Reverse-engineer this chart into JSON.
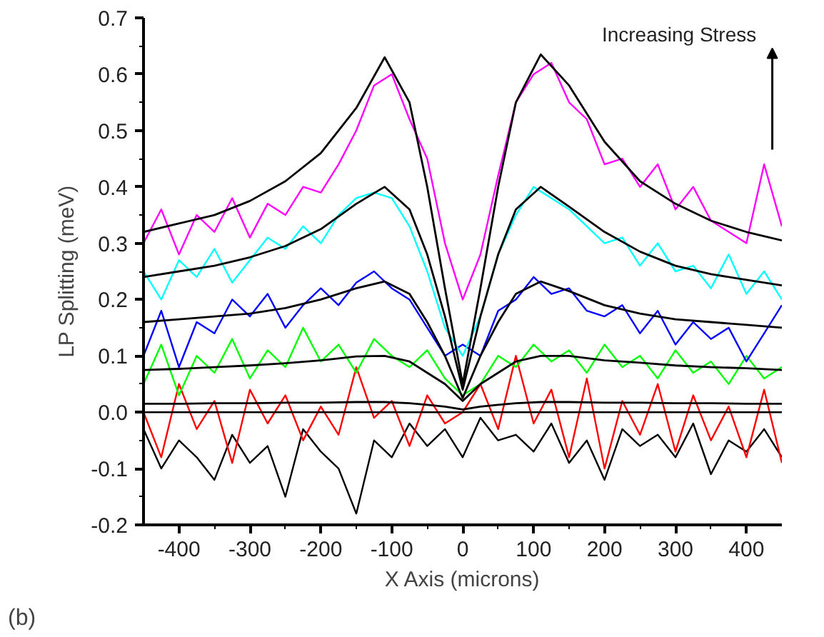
{
  "chart_data": {
    "type": "line",
    "xlabel": "X Axis (microns)",
    "ylabel": "LP Splitting (meV)",
    "annotations": [
      "Increasing Stress",
      "(b)"
    ],
    "x": [
      -450,
      -425,
      -400,
      -375,
      -350,
      -325,
      -300,
      -275,
      -250,
      -225,
      -200,
      -175,
      -150,
      -125,
      -100,
      -75,
      -50,
      -25,
      0,
      25,
      50,
      75,
      100,
      125,
      150,
      175,
      200,
      225,
      250,
      275,
      300,
      325,
      350,
      375,
      400,
      425,
      450
    ],
    "series": [
      {
        "color": "#000000",
        "values": [
          -0.03,
          -0.1,
          -0.05,
          -0.08,
          -0.12,
          -0.04,
          -0.09,
          -0.06,
          -0.15,
          -0.03,
          -0.07,
          -0.1,
          -0.18,
          -0.05,
          -0.08,
          -0.02,
          -0.06,
          -0.03,
          -0.08,
          -0.01,
          -0.05,
          -0.04,
          -0.07,
          -0.02,
          -0.09,
          -0.05,
          -0.12,
          -0.03,
          -0.06,
          -0.04,
          -0.08,
          -0.02,
          -0.11,
          -0.05,
          -0.07,
          -0.03,
          -0.08
        ]
      },
      {
        "color": "#ff0000",
        "values": [
          0.0,
          -0.08,
          0.05,
          -0.03,
          0.02,
          -0.09,
          0.04,
          -0.02,
          0.03,
          -0.05,
          0.01,
          -0.04,
          0.08,
          -0.01,
          0.02,
          -0.06,
          0.03,
          -0.02,
          0.0,
          0.05,
          -0.03,
          0.1,
          -0.02,
          0.04,
          -0.08,
          0.06,
          -0.1,
          0.02,
          -0.04,
          0.05,
          -0.07,
          0.03,
          -0.05,
          0.01,
          -0.08,
          0.04,
          -0.09
        ]
      },
      {
        "color": "#00ff00",
        "values": [
          0.05,
          0.12,
          0.03,
          0.1,
          0.07,
          0.13,
          0.06,
          0.11,
          0.08,
          0.15,
          0.09,
          0.12,
          0.07,
          0.13,
          0.1,
          0.08,
          0.11,
          0.06,
          0.03,
          0.05,
          0.1,
          0.08,
          0.12,
          0.09,
          0.11,
          0.07,
          0.12,
          0.08,
          0.1,
          0.06,
          0.11,
          0.07,
          0.09,
          0.05,
          0.1,
          0.06,
          0.08
        ]
      },
      {
        "color": "#0000ff",
        "values": [
          0.1,
          0.18,
          0.08,
          0.16,
          0.14,
          0.2,
          0.17,
          0.21,
          0.15,
          0.19,
          0.22,
          0.19,
          0.23,
          0.25,
          0.22,
          0.2,
          0.15,
          0.1,
          0.12,
          0.1,
          0.18,
          0.2,
          0.24,
          0.21,
          0.22,
          0.18,
          0.17,
          0.19,
          0.14,
          0.18,
          0.12,
          0.16,
          0.13,
          0.15,
          0.09,
          0.14,
          0.19
        ]
      },
      {
        "color": "#00ffff",
        "values": [
          0.25,
          0.2,
          0.27,
          0.24,
          0.29,
          0.23,
          0.27,
          0.31,
          0.29,
          0.33,
          0.3,
          0.35,
          0.38,
          0.39,
          0.38,
          0.33,
          0.25,
          0.15,
          0.1,
          0.17,
          0.28,
          0.35,
          0.4,
          0.38,
          0.36,
          0.33,
          0.3,
          0.31,
          0.26,
          0.3,
          0.25,
          0.26,
          0.22,
          0.28,
          0.21,
          0.25,
          0.2
        ]
      },
      {
        "color": "#ff00ff",
        "values": [
          0.3,
          0.36,
          0.28,
          0.35,
          0.32,
          0.38,
          0.31,
          0.37,
          0.35,
          0.4,
          0.39,
          0.44,
          0.5,
          0.58,
          0.6,
          0.52,
          0.45,
          0.3,
          0.2,
          0.28,
          0.42,
          0.55,
          0.6,
          0.62,
          0.55,
          0.52,
          0.44,
          0.45,
          0.4,
          0.44,
          0.36,
          0.4,
          0.34,
          0.32,
          0.3,
          0.44,
          0.33
        ]
      },
      {
        "type": "line",
        "color": "#000000",
        "x": [
          -450,
          -400,
          -350,
          -300,
          -250,
          -200,
          -150,
          -110,
          -75,
          -50,
          -25,
          0,
          25,
          50,
          75,
          110,
          150,
          200,
          250,
          300,
          350,
          400,
          450
        ],
        "values": [
          0.015,
          0.015,
          0.016,
          0.016,
          0.017,
          0.017,
          0.018,
          0.018,
          0.016,
          0.013,
          0.01,
          0.005,
          0.01,
          0.013,
          0.016,
          0.018,
          0.018,
          0.017,
          0.017,
          0.016,
          0.016,
          0.015,
          0.015
        ]
      },
      {
        "type": "line",
        "color": "#000000",
        "x": [
          -450,
          -400,
          -350,
          -300,
          -250,
          -200,
          -150,
          -110,
          -75,
          -50,
          -25,
          0,
          25,
          50,
          75,
          110,
          150,
          200,
          250,
          300,
          350,
          400,
          450
        ],
        "values": [
          0.075,
          0.077,
          0.08,
          0.083,
          0.087,
          0.092,
          0.099,
          0.1,
          0.09,
          0.07,
          0.05,
          0.02,
          0.05,
          0.07,
          0.09,
          0.1,
          0.1,
          0.092,
          0.088,
          0.083,
          0.08,
          0.078,
          0.075
        ]
      },
      {
        "type": "line",
        "color": "#000000",
        "x": [
          -450,
          -400,
          -350,
          -300,
          -250,
          -200,
          -150,
          -110,
          -75,
          -50,
          -25,
          0,
          25,
          50,
          75,
          110,
          150,
          200,
          250,
          300,
          350,
          400,
          450
        ],
        "values": [
          0.16,
          0.165,
          0.17,
          0.175,
          0.185,
          0.2,
          0.22,
          0.232,
          0.21,
          0.16,
          0.1,
          0.025,
          0.1,
          0.16,
          0.21,
          0.232,
          0.215,
          0.19,
          0.175,
          0.165,
          0.16,
          0.155,
          0.15
        ]
      },
      {
        "type": "line",
        "color": "#000000",
        "x": [
          -450,
          -400,
          -350,
          -300,
          -250,
          -200,
          -150,
          -110,
          -75,
          -50,
          -25,
          0,
          25,
          50,
          75,
          110,
          150,
          200,
          250,
          300,
          350,
          400,
          450
        ],
        "values": [
          0.24,
          0.25,
          0.26,
          0.275,
          0.295,
          0.325,
          0.37,
          0.4,
          0.36,
          0.28,
          0.17,
          0.04,
          0.17,
          0.28,
          0.36,
          0.4,
          0.365,
          0.32,
          0.285,
          0.26,
          0.245,
          0.235,
          0.225
        ]
      },
      {
        "type": "line",
        "color": "#000000",
        "x": [
          -450,
          -400,
          -350,
          -300,
          -250,
          -200,
          -150,
          -110,
          -75,
          -50,
          -25,
          0,
          25,
          50,
          75,
          110,
          150,
          200,
          250,
          300,
          350,
          400,
          450
        ],
        "values": [
          0.32,
          0.335,
          0.35,
          0.375,
          0.41,
          0.46,
          0.54,
          0.63,
          0.55,
          0.4,
          0.22,
          0.05,
          0.22,
          0.4,
          0.55,
          0.635,
          0.58,
          0.48,
          0.41,
          0.37,
          0.34,
          0.32,
          0.305
        ]
      }
    ],
    "ref_lines": [
      {
        "axis": "y",
        "value": 0,
        "color": "#000000"
      }
    ],
    "xlim": [
      -450,
      450
    ],
    "xticks": [
      -400,
      -300,
      -200,
      -100,
      0,
      100,
      200,
      300,
      400
    ],
    "ylim": [
      -0.2,
      0.7
    ],
    "yticks": [
      -0.2,
      -0.1,
      {
        "value": 0,
        "label": "0.0"
      },
      0.1,
      0.2,
      0.3,
      0.4,
      0.5,
      0.6,
      0.7
    ],
    "grid": false
  }
}
